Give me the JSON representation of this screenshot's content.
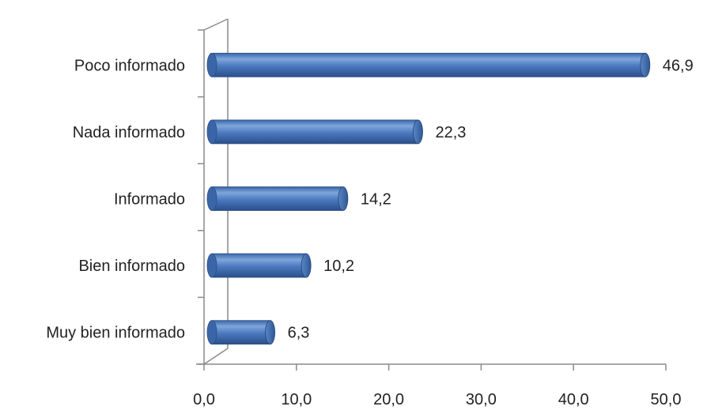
{
  "chart_data": {
    "type": "bar",
    "orientation": "horizontal",
    "style": "3d-cylinder",
    "categories": [
      "Poco informado",
      "Nada informado",
      "Informado",
      "Bien informado",
      "Muy bien informado"
    ],
    "values": [
      46.9,
      22.3,
      14.2,
      10.2,
      6.3
    ],
    "value_labels": [
      "46,9",
      "22,3",
      "14,2",
      "10,2",
      "6,3"
    ],
    "xlim": [
      0,
      50
    ],
    "x_ticks": [
      0,
      10,
      20,
      30,
      40,
      50
    ],
    "x_tick_labels": [
      "0,0",
      "10,0",
      "20,0",
      "30,0",
      "40,0",
      "50,0"
    ],
    "title": "",
    "xlabel": "",
    "ylabel": "",
    "grid": false,
    "legend": "none",
    "bar_color": "#4F81BD"
  }
}
